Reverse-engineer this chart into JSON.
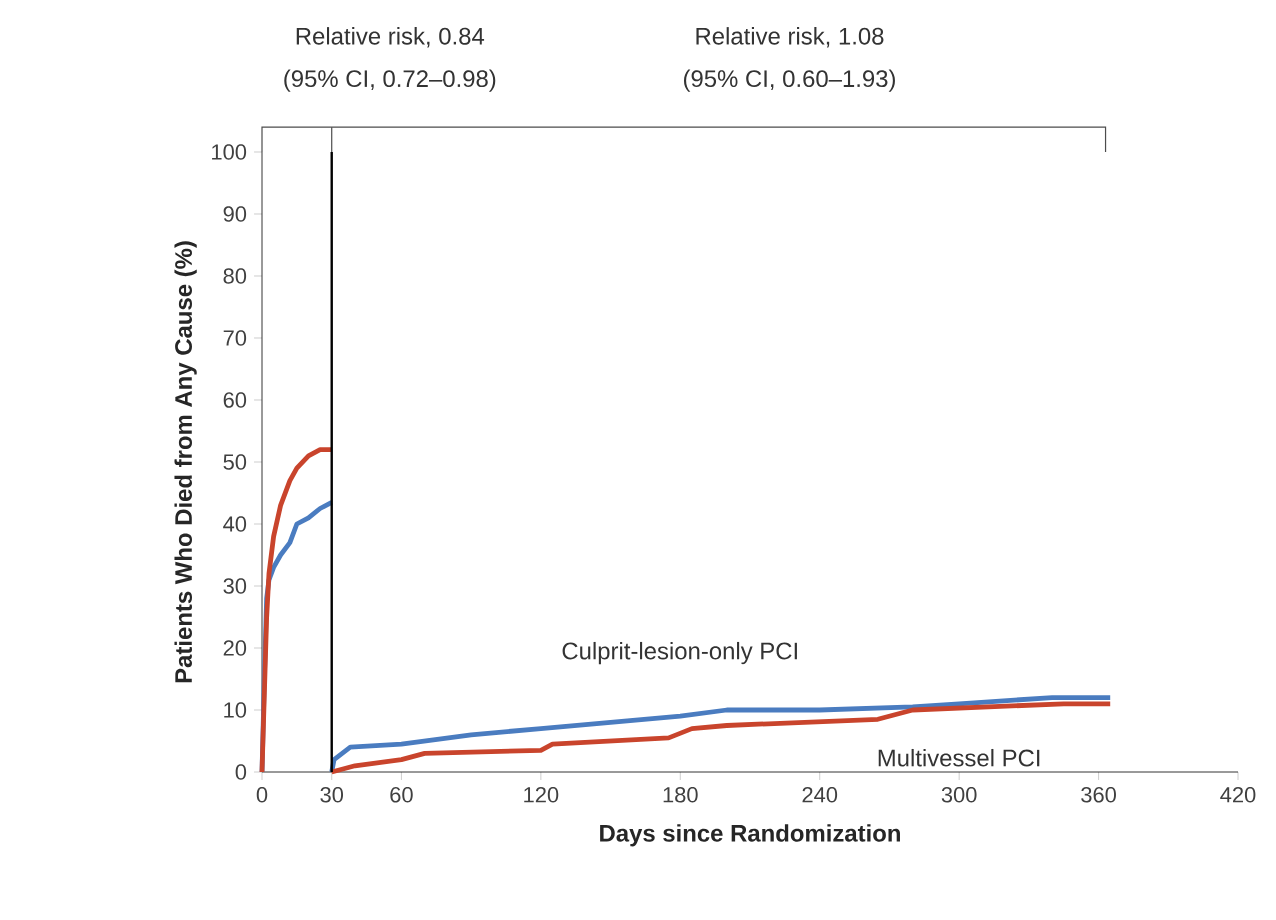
{
  "chart_data": {
    "type": "line",
    "xlabel": "Days since Randomization",
    "ylabel": "Patients Who Died from Any Cause (%)",
    "annotations": [
      "Relative risk, 0.84",
      "(95% CI, 0.72–0.98)",
      "Relative risk, 1.08",
      "(95% CI, 0.60–1.93)"
    ],
    "series": [
      {
        "name": "Culprit-lesion-only PCI",
        "color": "#4a7cc0",
        "x": [
          30,
          31,
          38,
          60,
          90,
          120,
          150,
          180,
          200,
          240,
          280,
          300,
          340,
          365
        ],
        "values": [
          0,
          2,
          4,
          4.5,
          6,
          7,
          8,
          9,
          10,
          10,
          10.5,
          11,
          12,
          12
        ]
      },
      {
        "name": "Multivessel PCI",
        "color": "#c9442c",
        "x": [
          30,
          40,
          60,
          70,
          120,
          125,
          175,
          185,
          200,
          265,
          280,
          345,
          365
        ],
        "values": [
          0,
          1,
          2,
          3,
          3.5,
          4.5,
          5.5,
          7,
          7.5,
          8.5,
          10,
          11,
          11
        ]
      },
      {
        "color": "#4a7cc0",
        "x": [
          0,
          1,
          2,
          3,
          5,
          8,
          12,
          15,
          20,
          25,
          30
        ],
        "values": [
          0,
          15,
          28,
          31,
          33,
          35,
          37,
          40,
          41,
          42.5,
          43.5
        ]
      },
      {
        "color": "#c9442c",
        "x": [
          0,
          2,
          3,
          5,
          8,
          12,
          15,
          20,
          25,
          30
        ],
        "values": [
          0,
          25,
          32,
          38,
          43,
          47,
          49,
          51,
          52,
          52
        ]
      }
    ],
    "xlim": [
      0,
      420
    ],
    "ylim": [
      0,
      100
    ],
    "xticks": [
      0,
      30,
      60,
      120,
      180,
      240,
      300,
      360,
      420
    ],
    "yticks": [
      0,
      10,
      20,
      30,
      40,
      50,
      60,
      70,
      80,
      90,
      100
    ],
    "ref_lines": [
      {
        "axis": "x",
        "value": 30,
        "color": "#000000"
      }
    ],
    "grid": false,
    "marker": "none",
    "line_style": "solid"
  }
}
